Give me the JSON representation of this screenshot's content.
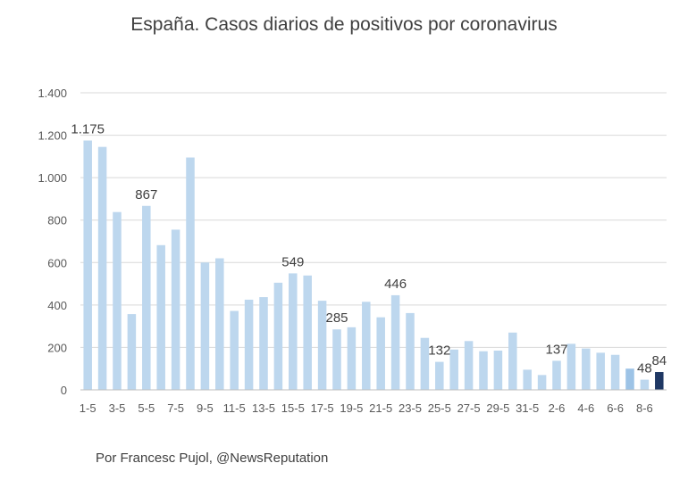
{
  "chart_data": {
    "type": "bar",
    "title": "España. Casos diarios de positivos por coronavirus",
    "xlabel": "",
    "ylabel": "",
    "ylim": [
      0,
      1400
    ],
    "yticks": [
      0,
      200,
      400,
      600,
      800,
      1000,
      1200,
      1400
    ],
    "ytick_labels": [
      "0",
      "200",
      "400",
      "600",
      "800",
      "1.000",
      "1.200",
      "1.400"
    ],
    "grid": true,
    "categories": [
      "1-5",
      "2-5",
      "3-5",
      "4-5",
      "5-5",
      "6-5",
      "7-5",
      "8-5",
      "9-5",
      "10-5",
      "11-5",
      "12-5",
      "13-5",
      "14-5",
      "15-5",
      "16-5",
      "17-5",
      "18-5",
      "19-5",
      "20-5",
      "21-5",
      "22-5",
      "23-5",
      "24-5",
      "25-5",
      "26-5",
      "27-5",
      "28-5",
      "29-5",
      "30-5",
      "31-5",
      "1-6",
      "2-6",
      "3-6",
      "4-6",
      "5-6",
      "6-6",
      "7-6",
      "8-6",
      "9-6"
    ],
    "xtick_labels": [
      "1-5",
      "3-5",
      "5-5",
      "7-5",
      "9-5",
      "11-5",
      "13-5",
      "15-5",
      "17-5",
      "19-5",
      "21-5",
      "23-5",
      "25-5",
      "27-5",
      "29-5",
      "31-5",
      "2-6",
      "4-6",
      "6-6",
      "8-6"
    ],
    "values": [
      1175,
      1145,
      838,
      357,
      867,
      682,
      755,
      1095,
      600,
      620,
      372,
      425,
      437,
      505,
      549,
      539,
      420,
      285,
      295,
      415,
      342,
      446,
      362,
      245,
      132,
      190,
      230,
      182,
      185,
      270,
      95,
      70,
      137,
      217,
      195,
      175,
      165,
      100,
      48,
      84
    ],
    "data_labels": [
      {
        "index": 0,
        "text": "1.175"
      },
      {
        "index": 4,
        "text": "867"
      },
      {
        "index": 14,
        "text": "549"
      },
      {
        "index": 17,
        "text": "285"
      },
      {
        "index": 21,
        "text": "446"
      },
      {
        "index": 24,
        "text": "132"
      },
      {
        "index": 32,
        "text": "137"
      },
      {
        "index": 38,
        "text": "48"
      },
      {
        "index": 39,
        "text": "84"
      }
    ],
    "colors": {
      "bar": "#bdd7ee",
      "highlight": "#9dc3e6",
      "last": "#1f3864",
      "grid": "#d9d9d9"
    },
    "highlight_index": 37,
    "last_index": 39
  },
  "footer": "Por Francesc Pujol, @NewsReputation"
}
